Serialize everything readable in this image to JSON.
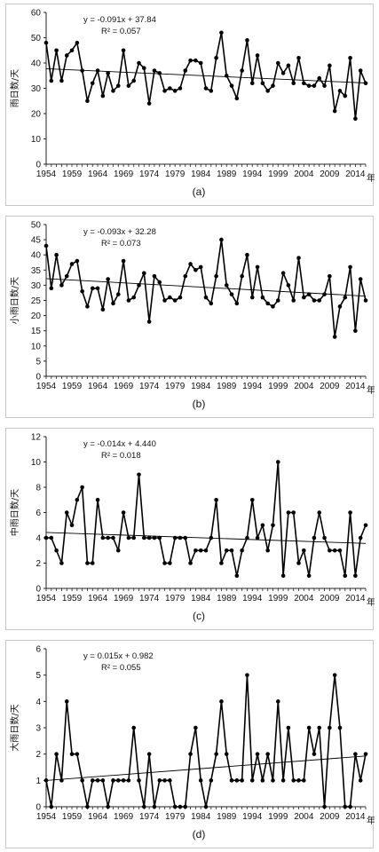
{
  "figure": {
    "year_suffix": "年",
    "x_tick_labels": [
      "1954",
      "1959",
      "1964",
      "1969",
      "1974",
      "1979",
      "1984",
      "1989",
      "1994",
      "1999",
      "2004",
      "2009",
      "2014"
    ],
    "x_range": [
      1954,
      2016
    ]
  },
  "chart_data": [
    {
      "type": "line",
      "caption": "(a)",
      "ylabel": "雨日数/天",
      "ylim": [
        0,
        60
      ],
      "y_ticks": [
        0,
        10,
        20,
        30,
        40,
        50,
        60
      ],
      "equation": "y = -0.091x + 37.84",
      "r2": "R² = 0.057",
      "trend": {
        "slope": -0.091,
        "intercept": 37.84
      },
      "x": [
        1954,
        1955,
        1956,
        1957,
        1958,
        1959,
        1960,
        1961,
        1962,
        1963,
        1964,
        1965,
        1966,
        1967,
        1968,
        1969,
        1970,
        1971,
        1972,
        1973,
        1974,
        1975,
        1976,
        1977,
        1978,
        1979,
        1980,
        1981,
        1982,
        1983,
        1984,
        1985,
        1986,
        1987,
        1988,
        1989,
        1990,
        1991,
        1992,
        1993,
        1994,
        1995,
        1996,
        1997,
        1998,
        1999,
        2000,
        2001,
        2002,
        2003,
        2004,
        2005,
        2006,
        2007,
        2008,
        2009,
        2010,
        2011,
        2012,
        2013,
        2014,
        2015,
        2016
      ],
      "values": [
        48,
        33,
        45,
        33,
        43,
        45,
        48,
        37,
        25,
        32,
        37,
        27,
        36,
        29,
        31,
        45,
        31,
        33,
        40,
        38,
        24,
        37,
        36,
        29,
        30,
        29,
        30,
        37,
        41,
        41,
        40,
        30,
        29,
        42,
        52,
        35,
        31,
        26,
        37,
        49,
        32,
        43,
        32,
        29,
        31,
        40,
        36,
        39,
        32,
        42,
        32,
        31,
        31,
        34,
        31,
        39,
        21,
        29,
        27,
        42,
        18,
        37,
        32
      ]
    },
    {
      "type": "line",
      "caption": "(b)",
      "ylabel": "小雨日数/天",
      "ylim": [
        0,
        50
      ],
      "y_ticks": [
        0,
        5,
        10,
        15,
        20,
        25,
        30,
        35,
        40,
        45,
        50
      ],
      "equation": "y = -0.093x + 32.28",
      "r2": "R² = 0.073",
      "trend": {
        "slope": -0.093,
        "intercept": 32.28
      },
      "x": [
        1954,
        1955,
        1956,
        1957,
        1958,
        1959,
        1960,
        1961,
        1962,
        1963,
        1964,
        1965,
        1966,
        1967,
        1968,
        1969,
        1970,
        1971,
        1972,
        1973,
        1974,
        1975,
        1976,
        1977,
        1978,
        1979,
        1980,
        1981,
        1982,
        1983,
        1984,
        1985,
        1986,
        1987,
        1988,
        1989,
        1990,
        1991,
        1992,
        1993,
        1994,
        1995,
        1996,
        1997,
        1998,
        1999,
        2000,
        2001,
        2002,
        2003,
        2004,
        2005,
        2006,
        2007,
        2008,
        2009,
        2010,
        2011,
        2012,
        2013,
        2014,
        2015,
        2016
      ],
      "values": [
        43,
        29,
        40,
        30,
        33,
        37,
        38,
        28,
        23,
        29,
        29,
        22,
        32,
        24,
        27,
        38,
        25,
        26,
        30,
        34,
        18,
        33,
        31,
        25,
        26,
        25,
        26,
        33,
        37,
        35,
        36,
        26,
        24,
        33,
        45,
        30,
        27,
        24,
        33,
        40,
        26,
        36,
        26,
        24,
        23,
        25,
        34,
        30,
        25,
        39,
        26,
        27,
        25,
        25,
        27,
        33,
        13,
        23,
        26,
        36,
        15,
        32,
        25
      ]
    },
    {
      "type": "line",
      "caption": "(c)",
      "ylabel": "中雨日数/天",
      "ylim": [
        0,
        12
      ],
      "y_ticks": [
        0,
        2,
        4,
        6,
        8,
        10,
        12
      ],
      "equation": "y = -0.014x + 4.440",
      "r2": "R² = 0.018",
      "trend": {
        "slope": -0.014,
        "intercept": 4.44
      },
      "x": [
        1954,
        1955,
        1956,
        1957,
        1958,
        1959,
        1960,
        1961,
        1962,
        1963,
        1964,
        1965,
        1966,
        1967,
        1968,
        1969,
        1970,
        1971,
        1972,
        1973,
        1974,
        1975,
        1976,
        1977,
        1978,
        1979,
        1980,
        1981,
        1982,
        1983,
        1984,
        1985,
        1986,
        1987,
        1988,
        1989,
        1990,
        1991,
        1992,
        1993,
        1994,
        1995,
        1996,
        1997,
        1998,
        1999,
        2000,
        2001,
        2002,
        2003,
        2004,
        2005,
        2006,
        2007,
        2008,
        2009,
        2010,
        2011,
        2012,
        2013,
        2014,
        2015,
        2016
      ],
      "values": [
        4,
        4,
        3,
        2,
        6,
        5,
        7,
        8,
        2,
        2,
        7,
        4,
        4,
        4,
        3,
        6,
        4,
        4,
        9,
        4,
        4,
        4,
        4,
        2,
        2,
        4,
        4,
        4,
        2,
        3,
        3,
        3,
        4,
        7,
        2,
        3,
        3,
        1,
        3,
        4,
        7,
        4,
        5,
        3,
        5,
        10,
        1,
        6,
        6,
        2,
        3,
        1,
        4,
        6,
        4,
        3,
        3,
        3,
        1,
        6,
        1,
        4,
        5
      ]
    },
    {
      "type": "line",
      "caption": "(d)",
      "ylabel": "大雨日数/天",
      "ylim": [
        0,
        6
      ],
      "y_ticks": [
        0,
        1,
        2,
        3,
        4,
        5,
        6
      ],
      "equation": "y = 0.015x + 0.982",
      "r2": "R² = 0.055",
      "trend": {
        "slope": 0.015,
        "intercept": 0.982
      },
      "x": [
        1954,
        1955,
        1956,
        1957,
        1958,
        1959,
        1960,
        1961,
        1962,
        1963,
        1964,
        1965,
        1966,
        1967,
        1968,
        1969,
        1970,
        1971,
        1972,
        1973,
        1974,
        1975,
        1976,
        1977,
        1978,
        1979,
        1980,
        1981,
        1982,
        1983,
        1984,
        1985,
        1986,
        1987,
        1988,
        1989,
        1990,
        1991,
        1992,
        1993,
        1994,
        1995,
        1996,
        1997,
        1998,
        1999,
        2000,
        2001,
        2002,
        2003,
        2004,
        2005,
        2006,
        2007,
        2008,
        2009,
        2010,
        2011,
        2012,
        2013,
        2014,
        2015,
        2016
      ],
      "values": [
        1,
        0,
        2,
        1,
        4,
        2,
        2,
        1,
        0,
        1,
        1,
        1,
        0,
        1,
        1,
        1,
        1,
        3,
        1,
        0,
        2,
        0,
        1,
        1,
        1,
        0,
        0,
        0,
        2,
        3,
        1,
        0,
        1,
        2,
        4,
        2,
        1,
        1,
        1,
        5,
        1,
        2,
        1,
        2,
        1,
        4,
        1,
        3,
        1,
        1,
        1,
        3,
        2,
        3,
        0,
        3,
        5,
        3,
        0,
        0,
        2,
        1,
        2
      ]
    }
  ]
}
